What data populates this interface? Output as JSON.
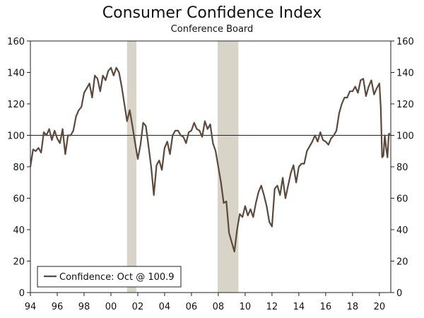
{
  "chart_data": {
    "type": "line",
    "title": "Consumer Confidence Index",
    "subtitle": "Conference Board",
    "xlabel": "",
    "ylabel": "",
    "xlim": [
      1994,
      2020.85
    ],
    "ylim": [
      0,
      160
    ],
    "y_ticks": [
      0,
      20,
      40,
      60,
      80,
      100,
      120,
      140,
      160
    ],
    "x_ticks": [
      {
        "label": "94",
        "value": 1994
      },
      {
        "label": "96",
        "value": 1996
      },
      {
        "label": "98",
        "value": 1998
      },
      {
        "label": "00",
        "value": 2000
      },
      {
        "label": "02",
        "value": 2002
      },
      {
        "label": "04",
        "value": 2004
      },
      {
        "label": "06",
        "value": 2006
      },
      {
        "label": "08",
        "value": 2008
      },
      {
        "label": "10",
        "value": 2010
      },
      {
        "label": "12",
        "value": 2012
      },
      {
        "label": "14",
        "value": 2014
      },
      {
        "label": "16",
        "value": 2016
      },
      {
        "label": "18",
        "value": 2018
      },
      {
        "label": "20",
        "value": 2020
      }
    ],
    "reference_line": 100,
    "recessions": [
      {
        "start": 2001.2,
        "end": 2001.9
      },
      {
        "start": 2007.95,
        "end": 2009.5
      }
    ],
    "legend": "Confidence: Oct @ 100.9",
    "series": [
      {
        "name": "Confidence",
        "color": "#5b4a3c",
        "x": [
          1994.0,
          1994.2,
          1994.4,
          1994.6,
          1994.8,
          1995.0,
          1995.2,
          1995.4,
          1995.6,
          1995.8,
          1996.0,
          1996.2,
          1996.4,
          1996.6,
          1996.8,
          1997.0,
          1997.2,
          1997.4,
          1997.6,
          1997.8,
          1998.0,
          1998.2,
          1998.4,
          1998.6,
          1998.8,
          1999.0,
          1999.2,
          1999.4,
          1999.6,
          1999.8,
          2000.0,
          2000.2,
          2000.4,
          2000.6,
          2000.8,
          2001.0,
          2001.2,
          2001.4,
          2001.6,
          2001.8,
          2002.0,
          2002.2,
          2002.4,
          2002.6,
          2002.8,
          2003.0,
          2003.2,
          2003.4,
          2003.6,
          2003.8,
          2004.0,
          2004.2,
          2004.4,
          2004.6,
          2004.8,
          2005.0,
          2005.2,
          2005.4,
          2005.6,
          2005.8,
          2006.0,
          2006.2,
          2006.4,
          2006.6,
          2006.8,
          2007.0,
          2007.2,
          2007.4,
          2007.6,
          2007.8,
          2008.0,
          2008.2,
          2008.4,
          2008.6,
          2008.8,
          2009.0,
          2009.2,
          2009.4,
          2009.6,
          2009.8,
          2010.0,
          2010.2,
          2010.4,
          2010.6,
          2010.8,
          2011.0,
          2011.2,
          2011.4,
          2011.6,
          2011.8,
          2012.0,
          2012.2,
          2012.4,
          2012.6,
          2012.8,
          2013.0,
          2013.2,
          2013.4,
          2013.6,
          2013.8,
          2014.0,
          2014.2,
          2014.4,
          2014.6,
          2014.8,
          2015.0,
          2015.2,
          2015.4,
          2015.6,
          2015.8,
          2016.0,
          2016.2,
          2016.4,
          2016.6,
          2016.8,
          2017.0,
          2017.2,
          2017.4,
          2017.6,
          2017.8,
          2018.0,
          2018.2,
          2018.4,
          2018.6,
          2018.8,
          2019.0,
          2019.2,
          2019.4,
          2019.6,
          2019.8,
          2020.0,
          2020.1,
          2020.2,
          2020.3,
          2020.4,
          2020.5,
          2020.6,
          2020.7,
          2020.8
        ],
        "values": [
          80,
          91,
          90,
          92,
          89,
          102,
          100,
          104,
          97,
          103,
          98,
          95,
          104,
          88,
          100,
          100,
          103,
          112,
          116,
          118,
          127,
          130,
          133,
          124,
          138,
          136,
          128,
          138,
          135,
          141,
          143,
          138,
          143,
          140,
          131,
          120,
          109,
          116,
          106,
          95,
          85,
          94,
          108,
          106,
          93,
          80,
          62,
          81,
          84,
          78,
          92,
          96,
          88,
          100,
          103,
          103,
          100,
          99,
          95,
          102,
          103,
          108,
          104,
          103,
          99,
          109,
          104,
          107,
          95,
          90,
          80,
          70,
          57,
          58,
          38,
          32,
          26,
          40,
          50,
          48,
          55,
          49,
          53,
          48,
          57,
          64,
          68,
          62,
          55,
          45,
          42,
          66,
          68,
          62,
          73,
          60,
          68,
          76,
          81,
          70,
          80,
          82,
          82,
          90,
          93,
          96,
          100,
          96,
          102,
          97,
          96,
          94,
          98,
          100,
          103,
          114,
          120,
          124,
          124,
          128,
          128,
          131,
          127,
          135,
          136,
          125,
          131,
          135,
          126,
          130,
          133,
          118,
          86,
          87,
          100,
          92,
          86,
          101,
          100.9
        ]
      }
    ]
  }
}
